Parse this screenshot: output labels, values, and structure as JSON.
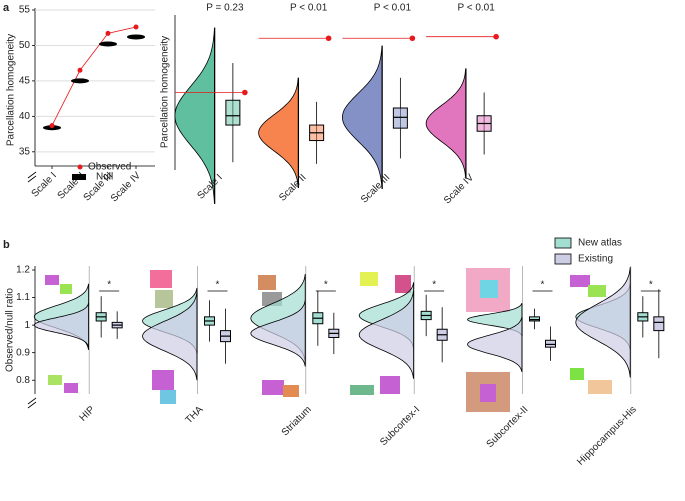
{
  "panel_labels": [
    "a",
    "b"
  ],
  "chart_data": [
    {
      "type": "line",
      "y_label": "Parcellation homogeneity",
      "categories": [
        "Scale I",
        "Scale II",
        "Scale III",
        "Scale IV"
      ],
      "series": [
        {
          "name": "Observed",
          "color": "#e8191c",
          "values": [
            38.7,
            46.5,
            51.7,
            52.6
          ]
        },
        {
          "name": "Null",
          "color": "#000000",
          "values": [
            38.4,
            45.0,
            50.2,
            51.2
          ]
        }
      ],
      "ylim": [
        33,
        55
      ],
      "yticks": [
        35,
        40,
        45,
        50,
        55
      ],
      "legend": "lower right"
    },
    {
      "type": "raincloud",
      "y_label": "Parcellation homogeneity",
      "categories": [
        "Scale I",
        "Scale II",
        "Scale III",
        "Scale IV"
      ],
      "annotations": [
        "P = 0.23",
        "P < 0.01",
        "P < 0.01",
        "P < 0.01"
      ],
      "colors": [
        "#5fbf9f",
        "#f7834f",
        "#8491c7",
        "#e276be"
      ],
      "observed_color": "#e8191c",
      "ylim": [
        0,
        10
      ],
      "values": [
        3.5,
        2.4,
        3.4,
        3.0
      ],
      "q1": [
        2.9,
        1.9,
        2.7,
        2.5
      ],
      "q3": [
        4.5,
        2.9,
        4.0,
        3.5
      ],
      "observed": [
        5.0,
        8.5,
        8.5,
        8.6
      ]
    },
    {
      "type": "raincloud-pair",
      "y_label": "Observed/null ratio",
      "categories": [
        "HIP",
        "THA",
        "Striatum",
        "Subcortex-I",
        "Subcortex-II",
        "Hippocampus-His"
      ],
      "annotations": [
        "*",
        "*",
        "*",
        "*",
        "*",
        "*"
      ],
      "series": [
        {
          "name": "New atlas",
          "color": "#a3ded2",
          "values": [
            1.03,
            1.015,
            1.025,
            1.035,
            1.02,
            1.03
          ],
          "q1": [
            1.015,
            1.0,
            1.005,
            1.02,
            1.015,
            1.015
          ],
          "q3": [
            1.045,
            1.03,
            1.045,
            1.05,
            1.03,
            1.045
          ]
        },
        {
          "name": "Existing",
          "color": "#cdcde6",
          "values": [
            1.0,
            0.96,
            0.97,
            0.965,
            0.93,
            1.01
          ],
          "q1": [
            0.99,
            0.94,
            0.955,
            0.945,
            0.92,
            0.98
          ],
          "q3": [
            1.01,
            0.98,
            0.985,
            0.985,
            0.945,
            1.03
          ]
        }
      ],
      "ylim": [
        0.75,
        1.2
      ],
      "yticks": [
        0.8,
        0.9,
        1,
        1.1,
        1.2
      ],
      "legend": "upper right"
    }
  ]
}
